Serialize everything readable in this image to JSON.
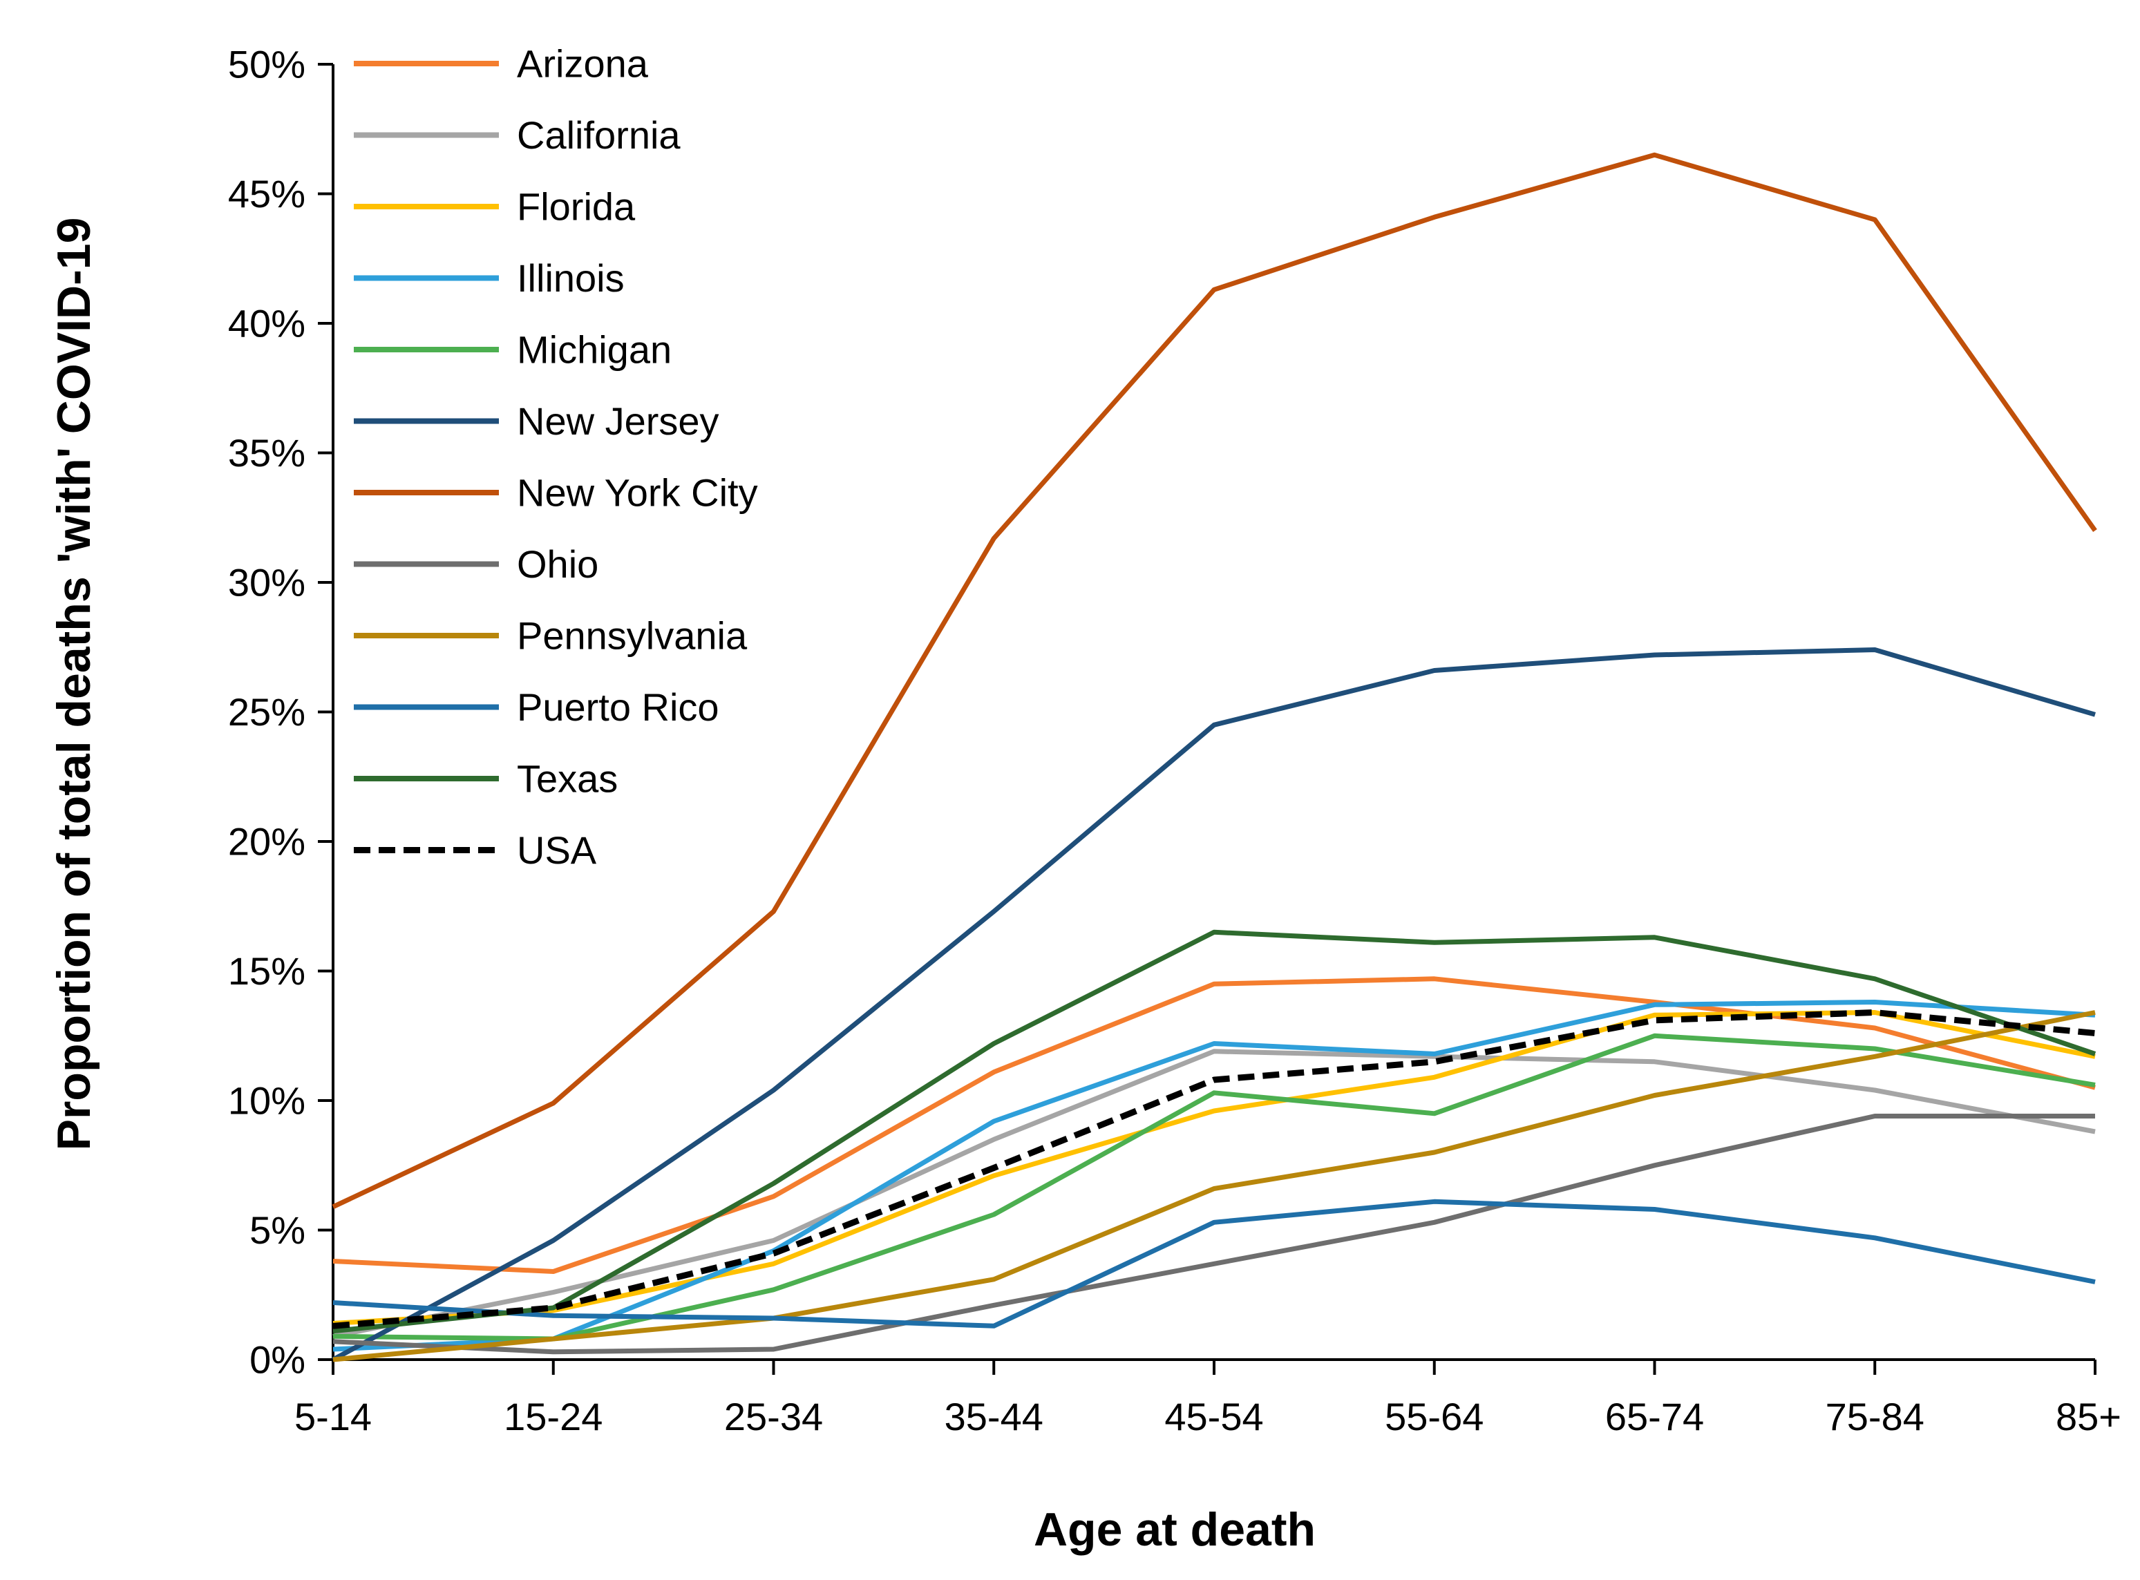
{
  "chart_data": {
    "type": "line",
    "title": "",
    "xlabel": "Age at death",
    "ylabel": "Proportion of total deaths 'with' COVID-19",
    "categories": [
      "5-14",
      "15-24",
      "25-34",
      "35-44",
      "45-54",
      "55-64",
      "65-74",
      "75-84",
      "85+"
    ],
    "ylim": [
      0,
      0.5
    ],
    "yticks": [
      0,
      0.05,
      0.1,
      0.15,
      0.2,
      0.25,
      0.3,
      0.35,
      0.4,
      0.45,
      0.5
    ],
    "yticklabels": [
      "0%",
      "5%",
      "10%",
      "15%",
      "20%",
      "25%",
      "30%",
      "35%",
      "40%",
      "45%",
      "50%"
    ],
    "grid": false,
    "legend_position": "top-left",
    "series": [
      {
        "name": "Arizona",
        "color": "#F47D2E",
        "dashed": false,
        "values": [
          0.038,
          0.034,
          0.063,
          0.111,
          0.145,
          0.147,
          0.138,
          0.128,
          0.105
        ]
      },
      {
        "name": "California",
        "color": "#A5A5A5",
        "dashed": false,
        "values": [
          0.009,
          0.026,
          0.046,
          0.085,
          0.119,
          0.117,
          0.115,
          0.104,
          0.088
        ]
      },
      {
        "name": "Florida",
        "color": "#FFC000",
        "dashed": false,
        "values": [
          0.014,
          0.019,
          0.037,
          0.071,
          0.096,
          0.109,
          0.133,
          0.134,
          0.117
        ]
      },
      {
        "name": "Illinois",
        "color": "#2E9FDA",
        "dashed": false,
        "values": [
          0.004,
          0.008,
          0.042,
          0.092,
          0.122,
          0.118,
          0.137,
          0.138,
          0.133
        ]
      },
      {
        "name": "Michigan",
        "color": "#4CAF50",
        "dashed": false,
        "values": [
          0.009,
          0.008,
          0.027,
          0.056,
          0.103,
          0.095,
          0.125,
          0.12,
          0.106
        ]
      },
      {
        "name": "New Jersey",
        "color": "#1F4E79",
        "dashed": false,
        "values": [
          0.0,
          0.046,
          0.104,
          0.173,
          0.245,
          0.266,
          0.272,
          0.274,
          0.249
        ]
      },
      {
        "name": "New York City",
        "color": "#C0500A",
        "dashed": false,
        "values": [
          0.059,
          0.099,
          0.173,
          0.317,
          0.413,
          0.441,
          0.465,
          0.44,
          0.32
        ]
      },
      {
        "name": "Ohio",
        "color": "#6E6E6E",
        "dashed": false,
        "values": [
          0.007,
          0.003,
          0.004,
          0.021,
          0.037,
          0.053,
          0.075,
          0.094,
          0.094
        ]
      },
      {
        "name": "Pennsylvania",
        "color": "#B8860B",
        "dashed": false,
        "values": [
          0.0,
          0.008,
          0.016,
          0.031,
          0.066,
          0.08,
          0.102,
          0.117,
          0.134
        ]
      },
      {
        "name": "Puerto Rico",
        "color": "#1F6FA8",
        "dashed": false,
        "values": [
          0.022,
          0.017,
          0.016,
          0.013,
          0.053,
          0.061,
          0.058,
          0.047,
          0.03
        ]
      },
      {
        "name": "Texas",
        "color": "#2E6B2E",
        "dashed": false,
        "values": [
          0.011,
          0.02,
          0.068,
          0.122,
          0.165,
          0.161,
          0.163,
          0.147,
          0.118
        ]
      },
      {
        "name": "USA",
        "color": "#000000",
        "dashed": true,
        "values": [
          0.013,
          0.02,
          0.041,
          0.074,
          0.108,
          0.115,
          0.131,
          0.134,
          0.126
        ]
      }
    ]
  }
}
